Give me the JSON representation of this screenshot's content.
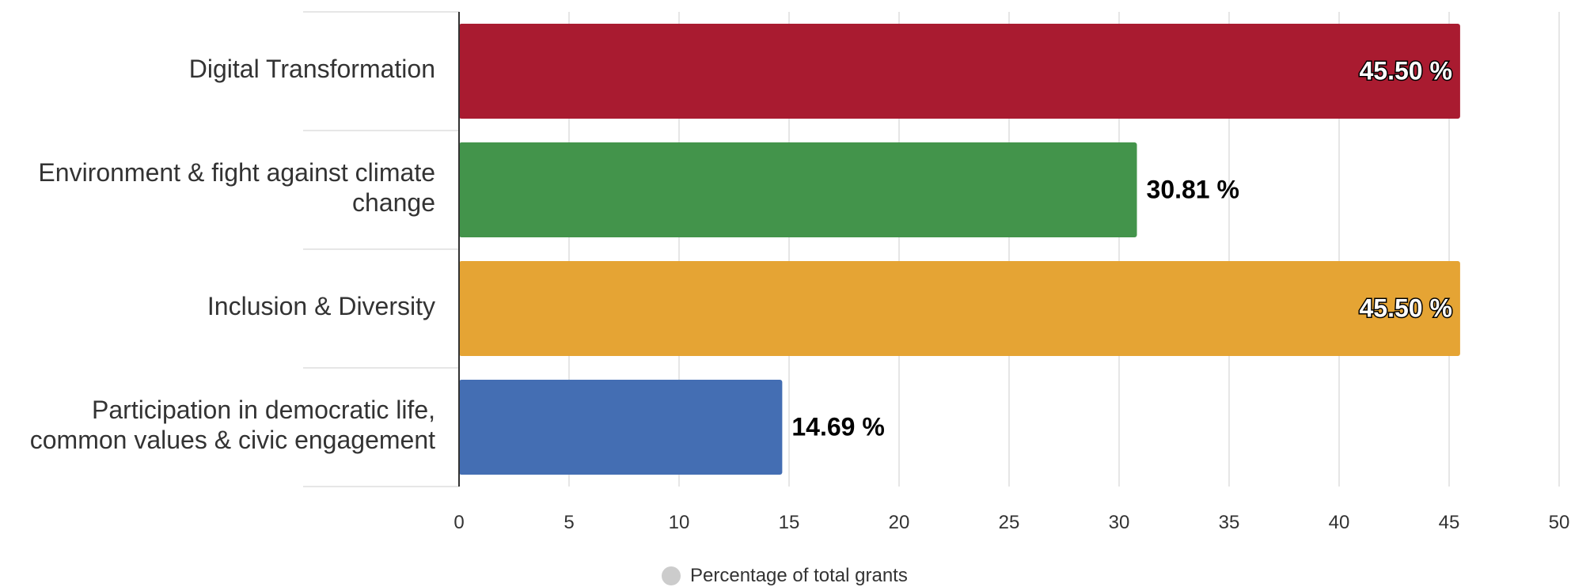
{
  "chart_data": {
    "type": "bar",
    "orientation": "horizontal",
    "categories": [
      [
        "Digital Transformation"
      ],
      [
        "Environment & fight against climate",
        "change"
      ],
      [
        "Inclusion & Diversity"
      ],
      [
        "Participation in democratic life,",
        "common values & civic engagement"
      ]
    ],
    "series": [
      {
        "name": "Percentage of total grants",
        "values": [
          45.5,
          30.81,
          45.5,
          14.69
        ]
      }
    ],
    "data_labels": [
      "45.50 %",
      "30.81 %",
      "45.50 %",
      "14.69 %"
    ],
    "bar_colors": [
      "#a91b30",
      "#43944b",
      "#e5a434",
      "#446eb3"
    ],
    "xlim": [
      0,
      50
    ],
    "x_ticks": [
      0,
      5,
      10,
      15,
      20,
      25,
      30,
      35,
      40,
      45,
      50
    ],
    "grid": true,
    "legend_position": "bottom-center",
    "legend_color": "#cccccc"
  }
}
